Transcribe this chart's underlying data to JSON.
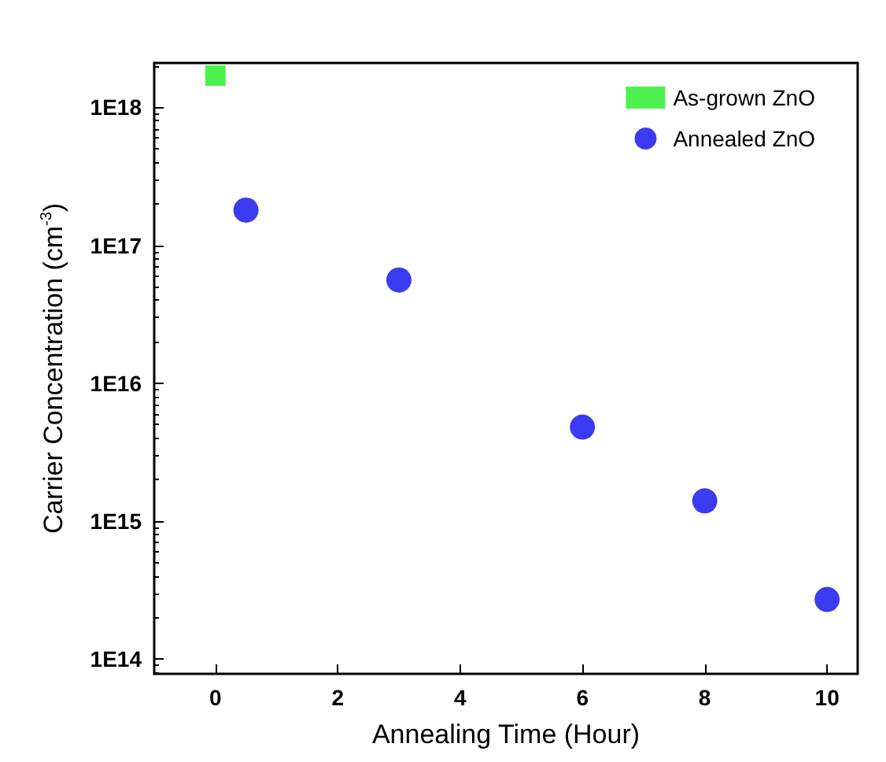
{
  "chart_data": {
    "type": "scatter",
    "xlabel": "Annealing Time (Hour)",
    "ylabel": "Carrier Concentration (cm$^{-3}$)",
    "log": "y",
    "legend": "top right",
    "grid": false,
    "xlim": [
      -1,
      10.5
    ],
    "xticks": [
      0,
      2,
      4,
      6,
      8,
      10
    ],
    "ylim": [
      78000000000000.0,
      2.1e+18
    ],
    "yticks": [
      {
        "value": 100000000000000.0,
        "label": "1E14"
      },
      {
        "value": 1000000000000000.0,
        "label": "1E15"
      },
      {
        "value": 1e+16,
        "label": "1E16"
      },
      {
        "value": 1e+17,
        "label": "1E17"
      },
      {
        "value": 1e+18,
        "label": "1E18"
      }
    ],
    "series": [
      {
        "name": "As-grown ZnO",
        "color": "#22ee22",
        "marker": "square",
        "x": [
          0
        ],
        "values": [
          1.7e+18
        ]
      },
      {
        "name": "Annealed ZnO",
        "color": "#0a0aee",
        "marker": "circle",
        "x": [
          0.5,
          3,
          6,
          8,
          10
        ],
        "values": [
          1.8e+17,
          5.6e+16,
          4800000000000000.0,
          1400000000000000.0,
          270000000000000.0
        ]
      }
    ]
  }
}
